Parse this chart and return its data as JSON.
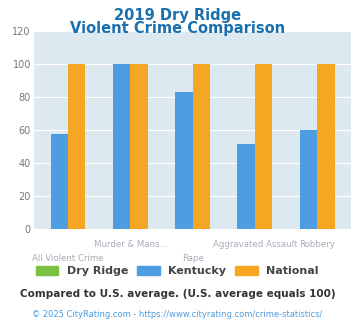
{
  "title_line1": "2019 Dry Ridge",
  "title_line2": "Violent Crime Comparison",
  "title_color": "#1a6faf",
  "categories": [
    "All Violent Crime",
    "Murder & Mans...",
    "Rape",
    "Aggravated Assault",
    "Robbery"
  ],
  "series": {
    "Dry Ridge": [
      0,
      0,
      0,
      0,
      0
    ],
    "Kentucky": [
      58,
      100,
      83,
      52,
      60
    ],
    "National": [
      100,
      100,
      100,
      100,
      100
    ]
  },
  "colors": {
    "Dry Ridge": "#7dc142",
    "Kentucky": "#4d9de0",
    "National": "#f5a623"
  },
  "ylim": [
    0,
    120
  ],
  "yticks": [
    0,
    20,
    40,
    60,
    80,
    100,
    120
  ],
  "plot_bg": "#dde9f0",
  "grid_color": "#c8d8e0",
  "footnote1": "Compared to U.S. average. (U.S. average equals 100)",
  "footnote2": "© 2025 CityRating.com - https://www.cityrating.com/crime-statistics/",
  "footnote1_color": "#333333",
  "footnote2_color": "#4d9de0",
  "xlabel_top": [
    "",
    "Murder & Mans...",
    "",
    "Aggravated Assault",
    "Robbery"
  ],
  "xlabel_bot": [
    "All Violent Crime",
    "",
    "Rape",
    "",
    ""
  ]
}
